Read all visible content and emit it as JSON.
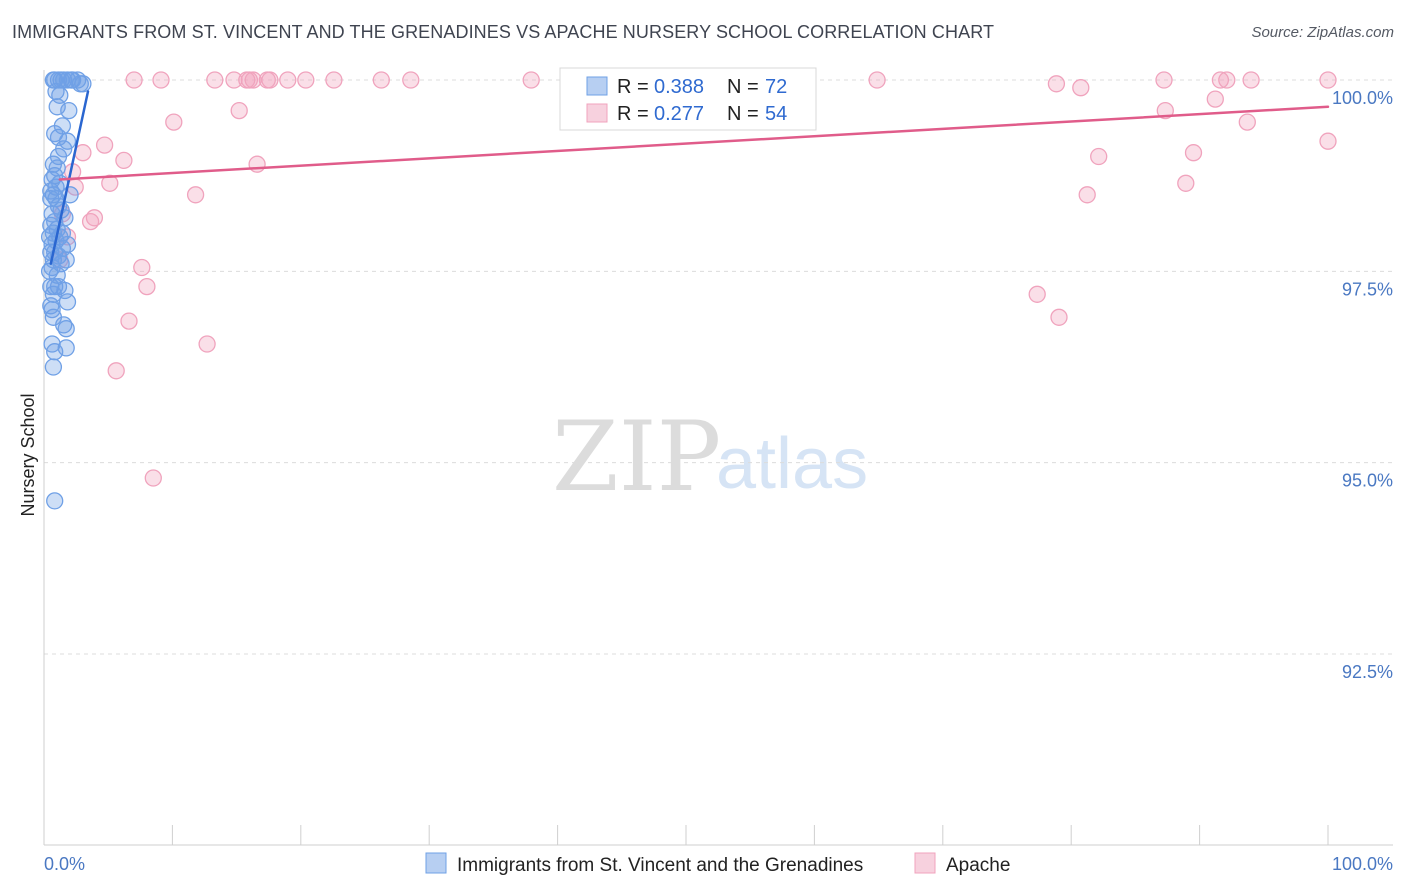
{
  "title": "IMMIGRANTS FROM ST. VINCENT AND THE GRENADINES VS APACHE NURSERY SCHOOL CORRELATION CHART",
  "source": "Source: ZipAtlas.com",
  "watermark": {
    "zip": "ZIP",
    "atlas": "atlas"
  },
  "chart_data": {
    "type": "scatter",
    "ylabel": "Nursery School",
    "xlim": [
      0,
      100
    ],
    "ylim": [
      90.0,
      100.25
    ],
    "x_tick_labels": [
      {
        "value": 0,
        "label": "0.0%"
      },
      {
        "value": 100,
        "label": "100.0%"
      }
    ],
    "y_ticks": [
      {
        "value": 100.0,
        "label": "100.0%"
      },
      {
        "value": 97.5,
        "label": "97.5%"
      },
      {
        "value": 95.0,
        "label": "95.0%"
      },
      {
        "value": 92.5,
        "label": "92.5%"
      }
    ],
    "grid": true,
    "series": [
      {
        "name": "Immigrants from St. Vincent and the Grenadines",
        "color": "#6fa0e6",
        "line_color": "#2a66d0",
        "R": "0.388",
        "N": "72",
        "trend": {
          "x0": 0.3,
          "y0": 97.6,
          "x1": 3.2,
          "y1": 99.85
        },
        "points": [
          [
            0.5,
            100.0
          ],
          [
            0.6,
            100.0
          ],
          [
            0.9,
            100.0
          ],
          [
            1.1,
            100.0
          ],
          [
            1.3,
            100.0
          ],
          [
            1.6,
            100.0
          ],
          [
            2.0,
            100.0
          ],
          [
            2.4,
            100.0
          ],
          [
            2.6,
            99.95
          ],
          [
            2.8,
            99.95
          ],
          [
            0.7,
            99.85
          ],
          [
            1.0,
            99.8
          ],
          [
            0.8,
            99.65
          ],
          [
            1.7,
            99.6
          ],
          [
            1.2,
            99.4
          ],
          [
            0.6,
            99.3
          ],
          [
            0.9,
            99.25
          ],
          [
            1.6,
            99.2
          ],
          [
            1.3,
            99.1
          ],
          [
            0.5,
            98.9
          ],
          [
            0.8,
            98.85
          ],
          [
            0.6,
            98.75
          ],
          [
            0.4,
            98.7
          ],
          [
            1.0,
            98.65
          ],
          [
            0.7,
            98.6
          ],
          [
            1.8,
            98.5
          ],
          [
            0.5,
            98.5
          ],
          [
            0.3,
            98.45
          ],
          [
            0.9,
            98.35
          ],
          [
            1.1,
            98.3
          ],
          [
            0.4,
            98.25
          ],
          [
            1.4,
            98.2
          ],
          [
            0.6,
            98.15
          ],
          [
            0.3,
            98.1
          ],
          [
            0.8,
            98.05
          ],
          [
            0.5,
            98.0
          ],
          [
            0.2,
            97.95
          ],
          [
            0.7,
            97.9
          ],
          [
            1.6,
            97.85
          ],
          [
            0.4,
            97.85
          ],
          [
            1.2,
            97.8
          ],
          [
            0.6,
            97.75
          ],
          [
            0.3,
            97.75
          ],
          [
            0.9,
            97.7
          ],
          [
            1.5,
            97.65
          ],
          [
            0.5,
            97.65
          ],
          [
            1.1,
            97.6
          ],
          [
            0.4,
            97.55
          ],
          [
            0.2,
            97.5
          ],
          [
            0.8,
            97.45
          ],
          [
            0.6,
            97.3
          ],
          [
            0.9,
            97.3
          ],
          [
            0.3,
            97.3
          ],
          [
            1.4,
            97.25
          ],
          [
            0.5,
            97.2
          ],
          [
            1.6,
            97.1
          ],
          [
            0.3,
            97.05
          ],
          [
            0.4,
            97.0
          ],
          [
            1.3,
            96.8
          ],
          [
            1.5,
            96.75
          ],
          [
            0.4,
            96.55
          ],
          [
            1.5,
            96.5
          ],
          [
            0.6,
            96.45
          ],
          [
            0.5,
            96.25
          ],
          [
            0.6,
            94.5
          ],
          [
            1.9,
            100.0
          ],
          [
            0.9,
            99.0
          ],
          [
            0.3,
            98.55
          ],
          [
            1.0,
            97.95
          ],
          [
            0.7,
            98.45
          ],
          [
            1.2,
            98.0
          ],
          [
            0.5,
            96.9
          ]
        ]
      },
      {
        "name": "Apache",
        "color": "#f0a3bd",
        "line_color": "#e05c8a",
        "R": "0.277",
        "N": "54",
        "trend": {
          "x0": 1.0,
          "y0": 98.7,
          "x1": 100.0,
          "y1": 99.65
        },
        "points": [
          [
            6.8,
            100.0
          ],
          [
            8.9,
            100.0
          ],
          [
            13.1,
            100.0
          ],
          [
            14.6,
            100.0
          ],
          [
            15.6,
            100.0
          ],
          [
            15.8,
            100.0
          ],
          [
            16.1,
            100.0
          ],
          [
            17.2,
            100.0
          ],
          [
            17.4,
            100.0
          ],
          [
            18.8,
            100.0
          ],
          [
            20.2,
            100.0
          ],
          [
            22.4,
            100.0
          ],
          [
            26.1,
            100.0
          ],
          [
            28.4,
            100.0
          ],
          [
            37.8,
            100.0
          ],
          [
            64.8,
            100.0
          ],
          [
            87.2,
            100.0
          ],
          [
            91.6,
            100.0
          ],
          [
            92.1,
            100.0
          ],
          [
            94.0,
            100.0
          ],
          [
            100.0,
            100.0
          ],
          [
            78.8,
            99.95
          ],
          [
            80.7,
            99.9
          ],
          [
            91.2,
            99.75
          ],
          [
            15.0,
            99.6
          ],
          [
            87.3,
            99.6
          ],
          [
            9.9,
            99.45
          ],
          [
            93.7,
            99.45
          ],
          [
            4.5,
            99.15
          ],
          [
            100.0,
            99.2
          ],
          [
            2.8,
            99.05
          ],
          [
            6.0,
            98.95
          ],
          [
            16.4,
            98.9
          ],
          [
            82.1,
            99.0
          ],
          [
            89.5,
            99.05
          ],
          [
            2.0,
            98.8
          ],
          [
            4.9,
            98.65
          ],
          [
            2.2,
            98.6
          ],
          [
            88.9,
            98.65
          ],
          [
            11.6,
            98.5
          ],
          [
            81.2,
            98.5
          ],
          [
            3.4,
            98.15
          ],
          [
            1.2,
            98.25
          ],
          [
            3.7,
            98.2
          ],
          [
            1.6,
            97.95
          ],
          [
            7.4,
            97.55
          ],
          [
            7.8,
            97.3
          ],
          [
            77.3,
            97.2
          ],
          [
            6.4,
            96.85
          ],
          [
            79.0,
            96.9
          ],
          [
            12.5,
            96.55
          ],
          [
            5.4,
            96.2
          ],
          [
            8.3,
            94.8
          ],
          [
            1.0,
            97.65
          ]
        ]
      }
    ]
  }
}
